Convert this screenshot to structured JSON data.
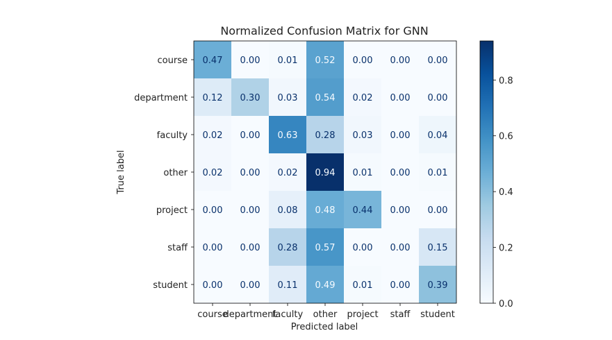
{
  "chart_data": {
    "type": "heatmap",
    "title": "Normalized Confusion Matrix for GNN",
    "xlabel": "Predicted label",
    "ylabel": "True label",
    "x_categories": [
      "course",
      "department",
      "faculty",
      "other",
      "project",
      "staff",
      "student"
    ],
    "y_categories": [
      "course",
      "department",
      "faculty",
      "other",
      "project",
      "staff",
      "student"
    ],
    "values": [
      [
        0.47,
        0.0,
        0.01,
        0.52,
        0.0,
        0.0,
        0.0
      ],
      [
        0.12,
        0.3,
        0.03,
        0.54,
        0.02,
        0.0,
        0.0
      ],
      [
        0.02,
        0.0,
        0.63,
        0.28,
        0.03,
        0.0,
        0.04
      ],
      [
        0.02,
        0.0,
        0.02,
        0.94,
        0.01,
        0.0,
        0.01
      ],
      [
        0.0,
        0.0,
        0.08,
        0.48,
        0.44,
        0.0,
        0.0
      ],
      [
        0.0,
        0.0,
        0.28,
        0.57,
        0.0,
        0.0,
        0.15
      ],
      [
        0.0,
        0.0,
        0.11,
        0.49,
        0.01,
        0.0,
        0.39
      ]
    ],
    "colormap": "Blues",
    "colorbar": {
      "vmin": 0.0,
      "vmax": 0.94,
      "ticks": [
        0.0,
        0.2,
        0.4,
        0.6,
        0.8
      ],
      "tick_labels": [
        "0.0",
        "0.2",
        "0.4",
        "0.6",
        "0.8"
      ]
    },
    "grid": false
  }
}
